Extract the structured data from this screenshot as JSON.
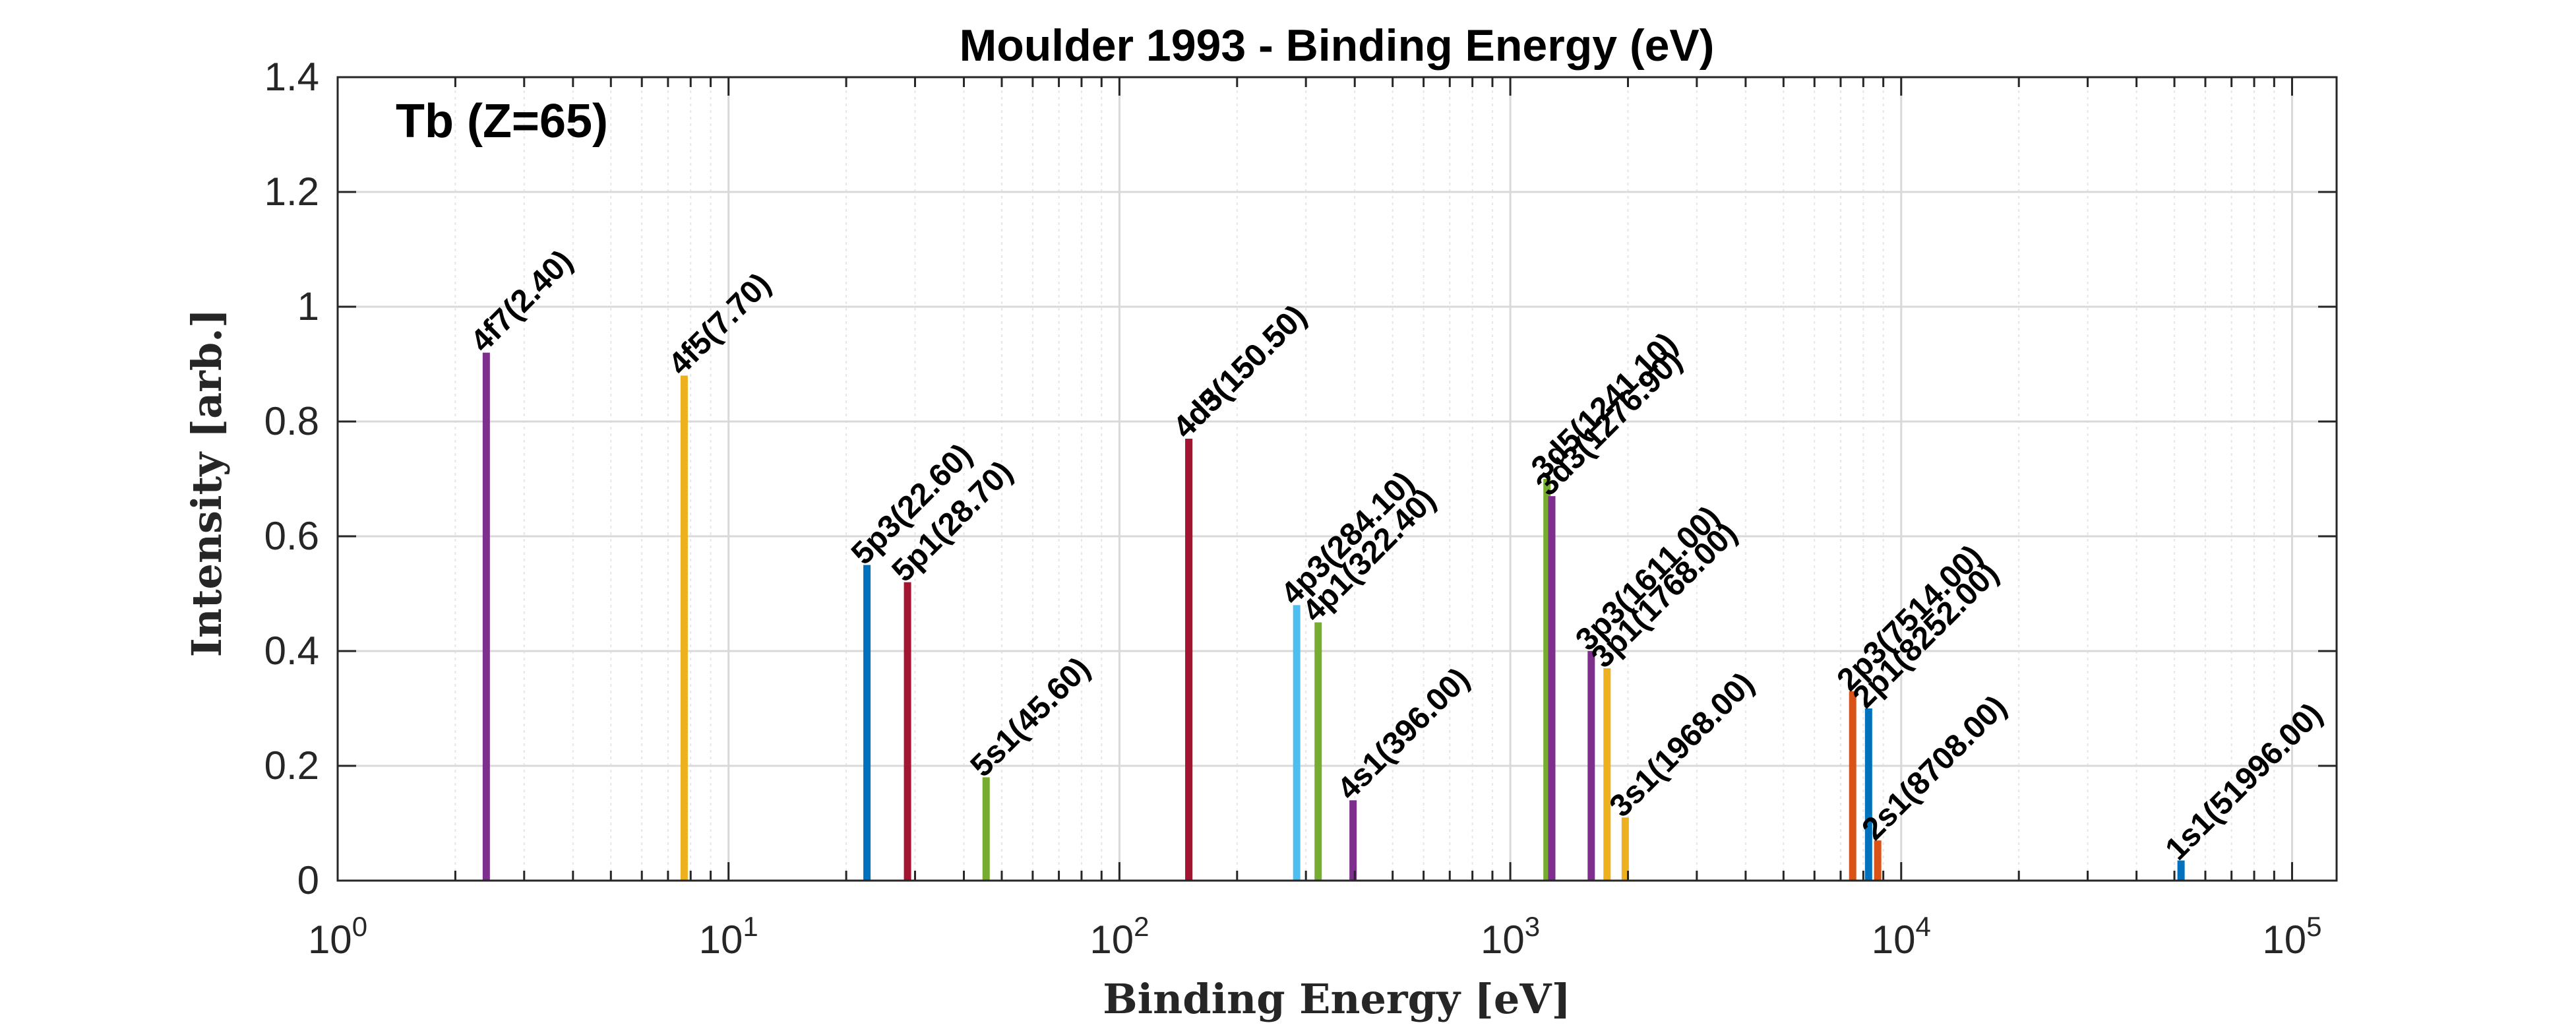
{
  "chart_data": {
    "type": "bar",
    "title": "Moulder 1993 - Binding Energy (eV)",
    "xlabel": "Binding Energy [eV]",
    "ylabel": "Intensity [arb.]",
    "annotation": "Tb (Z=65)",
    "xscale": "log",
    "xlim": [
      1,
      130000
    ],
    "ylim": [
      0,
      1.4
    ],
    "grid": true,
    "xticks": [
      {
        "value": 1,
        "base": "10",
        "exp": "0"
      },
      {
        "value": 10,
        "base": "10",
        "exp": "1"
      },
      {
        "value": 100,
        "base": "10",
        "exp": "2"
      },
      {
        "value": 1000,
        "base": "10",
        "exp": "3"
      },
      {
        "value": 10000,
        "base": "10",
        "exp": "4"
      },
      {
        "value": 100000,
        "base": "10",
        "exp": "5"
      }
    ],
    "yticks": [
      "0",
      "0.2",
      "0.4",
      "0.6",
      "0.8",
      "1",
      "1.2",
      "1.4"
    ],
    "peaks": [
      {
        "label": "4f7(2.40)",
        "energy": 2.4,
        "intensity": 0.92,
        "color": "#7E2F8E"
      },
      {
        "label": "4f5(7.70)",
        "energy": 7.7,
        "intensity": 0.88,
        "color": "#EDB120"
      },
      {
        "label": "5p3(22.60)",
        "energy": 22.6,
        "intensity": 0.55,
        "color": "#0072BD"
      },
      {
        "label": "5p1(28.70)",
        "energy": 28.7,
        "intensity": 0.52,
        "color": "#A2142F"
      },
      {
        "label": "5s1(45.60)",
        "energy": 45.6,
        "intensity": 0.18,
        "color": "#77AC30"
      },
      {
        "label": "4d5(150.50)",
        "energy": 150.5,
        "intensity": 0.77,
        "color": "#D95319"
      },
      {
        "label": "4d3(150.50)",
        "energy": 150.5,
        "intensity": 0.77,
        "color": "#A2142F"
      },
      {
        "label": "4p3(284.10)",
        "energy": 284.1,
        "intensity": 0.48,
        "color": "#4DBEEE"
      },
      {
        "label": "4p1(322.40)",
        "energy": 322.4,
        "intensity": 0.45,
        "color": "#77AC30"
      },
      {
        "label": "4s1(396.00)",
        "energy": 396.0,
        "intensity": 0.14,
        "color": "#7E2F8E"
      },
      {
        "label": "3d5(1241.10)",
        "energy": 1241.1,
        "intensity": 0.7,
        "color": "#77AC30"
      },
      {
        "label": "3d3(1276.90)",
        "energy": 1276.9,
        "intensity": 0.67,
        "color": "#7E2F8E"
      },
      {
        "label": "3p3(1611.00)",
        "energy": 1611.0,
        "intensity": 0.4,
        "color": "#7E2F8E"
      },
      {
        "label": "3p1(1768.00)",
        "energy": 1768.0,
        "intensity": 0.37,
        "color": "#EDB120"
      },
      {
        "label": "3s1(1968.00)",
        "energy": 1968.0,
        "intensity": 0.11,
        "color": "#EDB120"
      },
      {
        "label": "2p3(7514.00)",
        "energy": 7514.0,
        "intensity": 0.33,
        "color": "#D95319"
      },
      {
        "label": "2p1(8252.00)",
        "energy": 8252.0,
        "intensity": 0.3,
        "color": "#0072BD"
      },
      {
        "label": "2s1(8708.00)",
        "energy": 8708.0,
        "intensity": 0.07,
        "color": "#D95319"
      },
      {
        "label": "1s1(51996.00)",
        "energy": 51996.0,
        "intensity": 0.035,
        "color": "#0072BD"
      }
    ]
  }
}
